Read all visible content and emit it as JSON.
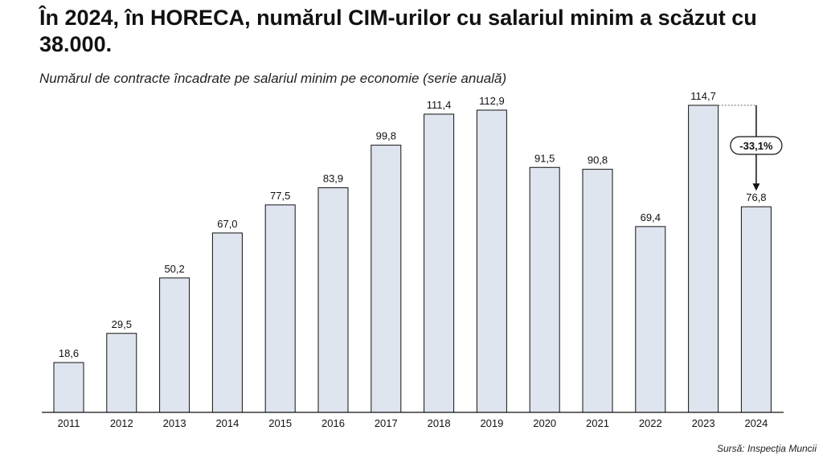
{
  "header": {
    "title": "În 2024, în HORECA, numărul CIM-urilor cu salariul minim a scăzut cu 38.000.",
    "subtitle": "Numărul de contracte încadrate pe salariul minim pe economie (serie anuală)"
  },
  "footer": {
    "source": "Sursă: Inspecția Muncii"
  },
  "colors": {
    "bar_fill": "#dfe5ef",
    "bar_stroke": "#111111",
    "axis": "#111111"
  },
  "chart_data": {
    "type": "bar",
    "categories": [
      "2011",
      "2012",
      "2013",
      "2014",
      "2015",
      "2016",
      "2017",
      "2018",
      "2019",
      "2020",
      "2021",
      "2022",
      "2023",
      "2024"
    ],
    "values": [
      18.6,
      29.5,
      50.2,
      67.0,
      77.5,
      83.9,
      99.8,
      111.4,
      112.9,
      91.5,
      90.8,
      69.4,
      114.7,
      76.8
    ],
    "value_labels": [
      "18,6",
      "29,5",
      "50,2",
      "67,0",
      "77,5",
      "83,9",
      "99,8",
      "111,4",
      "112,9",
      "91,5",
      "90,8",
      "69,4",
      "114,7",
      "76,8"
    ],
    "ylim": [
      0,
      114.7
    ],
    "grid": false,
    "annotation": {
      "text": "-33,1%",
      "from": "2023",
      "to": "2024"
    }
  }
}
